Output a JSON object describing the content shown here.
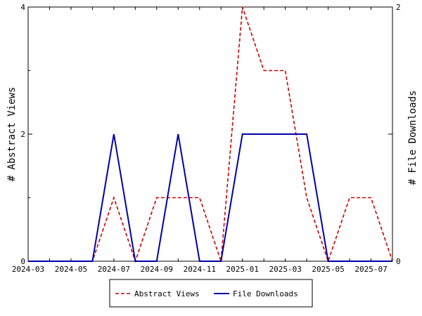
{
  "chart_data": {
    "type": "line",
    "title": "",
    "x": [
      "2024-03",
      "2024-04",
      "2024-05",
      "2024-06",
      "2024-07",
      "2024-08",
      "2024-09",
      "2024-10",
      "2024-11",
      "2024-12",
      "2025-01",
      "2025-02",
      "2025-03",
      "2025-04",
      "2025-05",
      "2025-06",
      "2025-07",
      "2025-08"
    ],
    "x_tick_labels": [
      "2024-03",
      "2024-05",
      "2024-07",
      "2024-09",
      "2024-11",
      "2025-01",
      "2025-03",
      "2025-05",
      "2025-07"
    ],
    "series": [
      {
        "name": "Abstract Views",
        "axis": "left",
        "color": "#cc0000",
        "style": "dashed",
        "values": [
          0,
          0,
          0,
          0,
          1,
          0,
          1,
          1,
          1,
          0,
          4,
          3,
          3,
          1,
          0,
          1,
          1,
          0
        ]
      },
      {
        "name": "File Downloads",
        "axis": "right",
        "color": "#0000aa",
        "style": "solid",
        "values": [
          0,
          0,
          0,
          0,
          1,
          0,
          0,
          1,
          0,
          0,
          1,
          1,
          1,
          1,
          0,
          0,
          0,
          0
        ]
      }
    ],
    "ylabel_left": "# Abstract Views",
    "ylabel_right": "# File Downloads",
    "ylim_left": [
      0,
      4
    ],
    "ylim_right": [
      0,
      2
    ],
    "yticks_left": [
      "0",
      "2",
      "4"
    ],
    "yticks_right": [
      "0",
      "2"
    ],
    "legend_position": "bottom-center",
    "grid": false
  }
}
